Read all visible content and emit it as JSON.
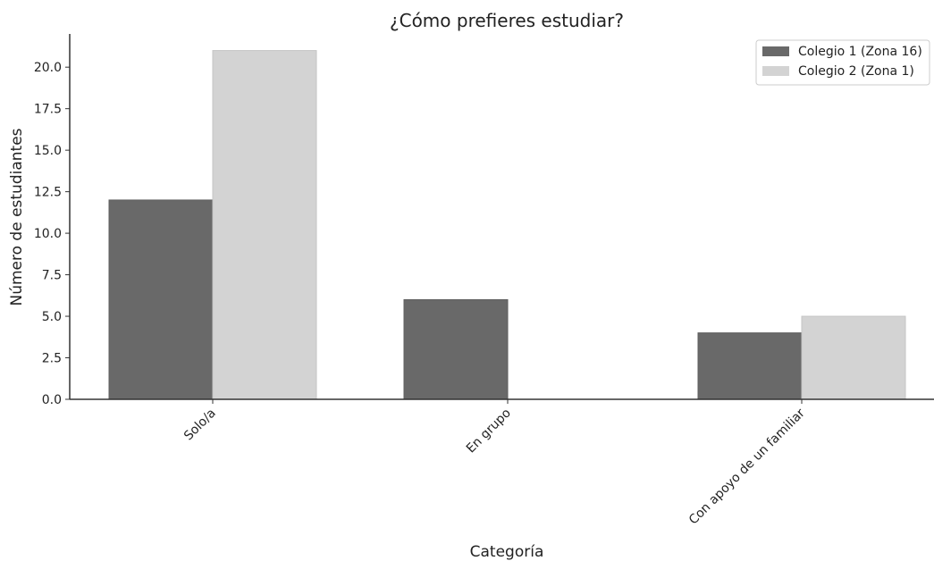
{
  "chart_data": {
    "type": "bar",
    "title": "¿Cómo prefieres estudiar?",
    "xlabel": "Categoría",
    "ylabel": "Número de estudiantes",
    "categories": [
      "Solo/a",
      "En grupo",
      "Con apoyo de un familiar"
    ],
    "series": [
      {
        "name": "Colegio 1 (Zona 16)",
        "values": [
          12,
          6,
          4
        ],
        "color": "#696969"
      },
      {
        "name": "Colegio 2 (Zona 1)",
        "values": [
          21,
          0,
          5
        ],
        "color": "#d3d3d3"
      }
    ],
    "ylim": [
      0,
      22
    ],
    "yticks": [
      0,
      2.5,
      5,
      7.5,
      10,
      12.5,
      15,
      17.5,
      20
    ],
    "ytick_labels": [
      "0.0",
      "2.5",
      "5.0",
      "7.5",
      "10.0",
      "12.5",
      "15.0",
      "17.5",
      "20.0"
    ],
    "legend_position": "top-right",
    "grid": false
  }
}
